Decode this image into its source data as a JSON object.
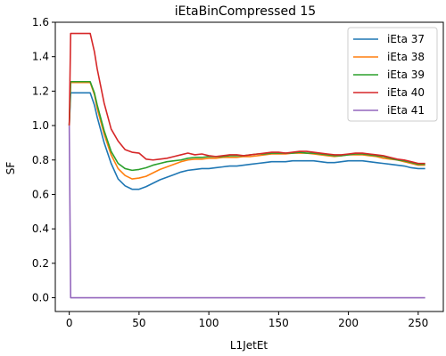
{
  "chart_data": {
    "type": "line",
    "title": "iEtaBinCompressed 15",
    "xlabel": "L1JetEt",
    "ylabel": "SF",
    "xlim": [
      -10,
      268
    ],
    "ylim": [
      -0.08,
      1.6
    ],
    "xticks": [
      0,
      50,
      100,
      150,
      200,
      250
    ],
    "yticks": [
      0.0,
      0.2,
      0.4,
      0.6,
      0.8,
      1.0,
      1.2,
      1.4,
      1.6
    ],
    "xtick_labels": [
      "0",
      "50",
      "100",
      "150",
      "200",
      "250"
    ],
    "ytick_labels": [
      "0.0",
      "0.2",
      "0.4",
      "0.6",
      "0.8",
      "1.0",
      "1.2",
      "1.4",
      "1.6"
    ],
    "legend_position": "top-right",
    "grid": false,
    "series": [
      {
        "name": "iEta 37",
        "color": "#1f77b4",
        "x": [
          0,
          1,
          2,
          5,
          10,
          15,
          18,
          20,
          25,
          30,
          35,
          40,
          45,
          50,
          55,
          60,
          65,
          70,
          75,
          80,
          85,
          90,
          95,
          100,
          105,
          110,
          115,
          120,
          125,
          130,
          135,
          140,
          145,
          150,
          155,
          160,
          165,
          170,
          175,
          180,
          185,
          190,
          195,
          200,
          205,
          210,
          215,
          220,
          225,
          230,
          235,
          240,
          245,
          250,
          255
        ],
        "y": [
          1.0,
          1.19,
          1.19,
          1.19,
          1.19,
          1.19,
          1.12,
          1.05,
          0.9,
          0.78,
          0.69,
          0.65,
          0.63,
          0.63,
          0.645,
          0.665,
          0.685,
          0.7,
          0.715,
          0.73,
          0.74,
          0.745,
          0.75,
          0.75,
          0.755,
          0.76,
          0.765,
          0.765,
          0.77,
          0.775,
          0.78,
          0.785,
          0.79,
          0.79,
          0.79,
          0.795,
          0.795,
          0.795,
          0.795,
          0.79,
          0.785,
          0.785,
          0.79,
          0.795,
          0.795,
          0.795,
          0.79,
          0.785,
          0.78,
          0.775,
          0.77,
          0.765,
          0.755,
          0.75,
          0.75
        ]
      },
      {
        "name": "iEta 38",
        "color": "#ff7f0e",
        "x": [
          0,
          1,
          2,
          5,
          10,
          15,
          18,
          20,
          25,
          30,
          35,
          40,
          45,
          50,
          55,
          60,
          65,
          70,
          75,
          80,
          85,
          90,
          95,
          100,
          105,
          110,
          115,
          120,
          125,
          130,
          135,
          140,
          145,
          150,
          155,
          160,
          165,
          170,
          175,
          180,
          185,
          190,
          195,
          200,
          205,
          210,
          215,
          220,
          225,
          230,
          235,
          240,
          245,
          250,
          255
        ],
        "y": [
          1.0,
          1.25,
          1.25,
          1.25,
          1.25,
          1.25,
          1.18,
          1.1,
          0.95,
          0.83,
          0.75,
          0.71,
          0.69,
          0.695,
          0.705,
          0.725,
          0.745,
          0.76,
          0.775,
          0.79,
          0.8,
          0.805,
          0.805,
          0.81,
          0.81,
          0.815,
          0.815,
          0.815,
          0.82,
          0.82,
          0.825,
          0.83,
          0.835,
          0.835,
          0.835,
          0.84,
          0.84,
          0.84,
          0.835,
          0.83,
          0.825,
          0.82,
          0.825,
          0.83,
          0.83,
          0.83,
          0.825,
          0.82,
          0.81,
          0.805,
          0.8,
          0.79,
          0.78,
          0.77,
          0.77
        ]
      },
      {
        "name": "iEta 39",
        "color": "#2ca02c",
        "x": [
          0,
          1,
          2,
          5,
          10,
          15,
          18,
          20,
          25,
          30,
          35,
          40,
          45,
          50,
          55,
          60,
          65,
          70,
          75,
          80,
          85,
          90,
          95,
          100,
          105,
          110,
          115,
          120,
          125,
          130,
          135,
          140,
          145,
          150,
          155,
          160,
          165,
          170,
          175,
          180,
          185,
          190,
          195,
          200,
          205,
          210,
          215,
          220,
          225,
          230,
          235,
          240,
          245,
          250,
          255
        ],
        "y": [
          1.0,
          1.255,
          1.255,
          1.255,
          1.255,
          1.255,
          1.19,
          1.12,
          0.97,
          0.85,
          0.78,
          0.75,
          0.74,
          0.745,
          0.755,
          0.77,
          0.78,
          0.79,
          0.795,
          0.8,
          0.81,
          0.815,
          0.815,
          0.82,
          0.82,
          0.82,
          0.825,
          0.825,
          0.825,
          0.83,
          0.835,
          0.835,
          0.84,
          0.84,
          0.84,
          0.84,
          0.845,
          0.84,
          0.84,
          0.835,
          0.83,
          0.825,
          0.825,
          0.83,
          0.835,
          0.835,
          0.83,
          0.825,
          0.82,
          0.81,
          0.8,
          0.795,
          0.785,
          0.775,
          0.775
        ]
      },
      {
        "name": "iEta 40",
        "color": "#d62728",
        "x": [
          0,
          1,
          2,
          5,
          10,
          15,
          18,
          20,
          25,
          30,
          35,
          40,
          45,
          50,
          55,
          60,
          65,
          70,
          75,
          80,
          85,
          90,
          95,
          100,
          105,
          110,
          115,
          120,
          125,
          130,
          135,
          140,
          145,
          150,
          155,
          160,
          165,
          170,
          175,
          180,
          185,
          190,
          195,
          200,
          205,
          210,
          215,
          220,
          225,
          230,
          235,
          240,
          245,
          250,
          255
        ],
        "y": [
          1.0,
          1.535,
          1.535,
          1.535,
          1.535,
          1.535,
          1.43,
          1.33,
          1.13,
          0.98,
          0.91,
          0.86,
          0.845,
          0.84,
          0.805,
          0.8,
          0.805,
          0.81,
          0.82,
          0.83,
          0.84,
          0.83,
          0.835,
          0.825,
          0.82,
          0.825,
          0.83,
          0.83,
          0.825,
          0.83,
          0.835,
          0.84,
          0.845,
          0.845,
          0.84,
          0.845,
          0.85,
          0.85,
          0.845,
          0.84,
          0.835,
          0.83,
          0.83,
          0.835,
          0.84,
          0.84,
          0.835,
          0.83,
          0.825,
          0.815,
          0.805,
          0.8,
          0.79,
          0.78,
          0.78
        ]
      },
      {
        "name": "iEta 41",
        "color": "#9467bd",
        "x": [
          0,
          1,
          2,
          50,
          100,
          150,
          200,
          255
        ],
        "y": [
          1.0,
          0.0,
          0.0,
          0.0,
          0.0,
          0.0,
          0.0,
          0.0
        ]
      }
    ]
  }
}
